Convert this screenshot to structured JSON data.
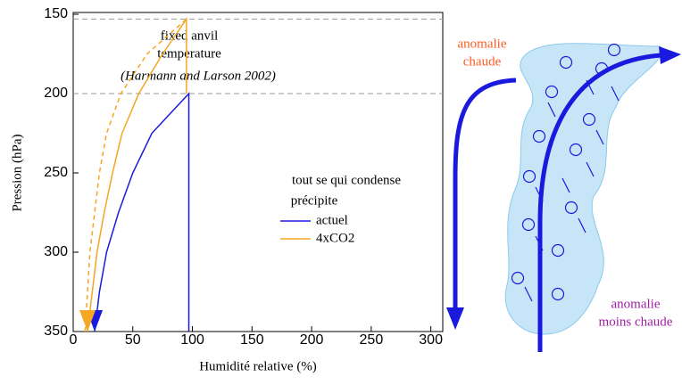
{
  "chart_data": {
    "type": "line",
    "ylabel": "Pression (hPa)",
    "xlabel": "Humidité relative (%)",
    "xlim": [
      0,
      310
    ],
    "xticks": [
      0,
      50,
      100,
      150,
      200,
      250,
      300
    ],
    "ylim": [
      150,
      350
    ],
    "yticks": [
      150,
      200,
      250,
      300,
      350
    ],
    "y_inverted": true,
    "reference_lines": [
      153,
      200
    ],
    "annotations": [
      "fixed anvil",
      "temperature",
      "(Harmann and Larson 2002)",
      "tout se qui condense",
      "précipite"
    ],
    "series": [
      {
        "name": "actuel",
        "color": "#1a1adf",
        "x": [
          18,
          22,
          28,
          38,
          50,
          66,
          97,
          97
        ],
        "values": [
          350,
          325,
          300,
          275,
          250,
          225,
          200,
          350
        ]
      },
      {
        "name": "4xCO2",
        "color": "#f5a623",
        "x": [
          12,
          16,
          20,
          26,
          33,
          41,
          55,
          75,
          95,
          95
        ],
        "values": [
          350,
          325,
          300,
          275,
          250,
          225,
          200,
          175,
          153,
          200
        ]
      },
      {
        "color": "#f5a623",
        "dash": true,
        "x": [
          10,
          12,
          14,
          18,
          22,
          28,
          40,
          62,
          95
        ],
        "values": [
          350,
          325,
          300,
          275,
          250,
          225,
          200,
          175,
          153
        ]
      }
    ],
    "legend": "inside-center-right"
  },
  "diagram": {
    "warm_label": [
      "anomalie",
      "chaude"
    ],
    "cool_label": [
      "anomalie",
      "moins chaude"
    ]
  }
}
